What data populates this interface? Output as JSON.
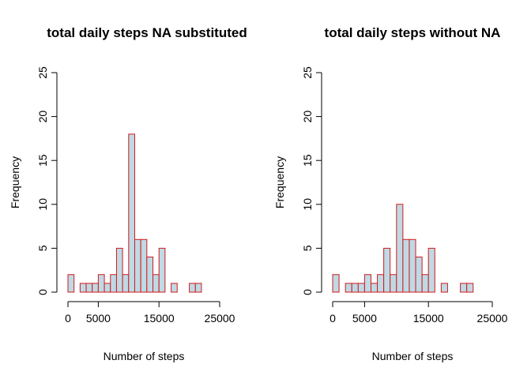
{
  "colors": {
    "bar_fill": "#bfd9e5",
    "bar_stroke": "#d21a1a",
    "axis": "#000000"
  },
  "chart_data": [
    {
      "type": "bar",
      "title": "total daily steps NA substituted",
      "xlabel": "Number of steps",
      "ylabel": "Frequency",
      "xlim": [
        0,
        25000
      ],
      "ylim": [
        0,
        25
      ],
      "x_ticks": [
        0,
        5000,
        15000,
        25000
      ],
      "x_tick_labels": [
        "0",
        "5000",
        "15000",
        "25000"
      ],
      "y_ticks": [
        0,
        5,
        10,
        15,
        20,
        25
      ],
      "y_tick_labels": [
        "0",
        "5",
        "10",
        "15",
        "20",
        "25"
      ],
      "bin_width": 1000,
      "bin_starts": [
        0,
        1000,
        2000,
        3000,
        4000,
        5000,
        6000,
        7000,
        8000,
        9000,
        10000,
        11000,
        12000,
        13000,
        14000,
        15000,
        16000,
        17000,
        18000,
        19000,
        20000,
        21000
      ],
      "values": [
        2,
        0,
        1,
        1,
        1,
        2,
        1,
        2,
        5,
        2,
        18,
        6,
        6,
        4,
        2,
        5,
        0,
        1,
        0,
        0,
        1,
        1
      ],
      "grid": false,
      "legend": "none"
    },
    {
      "type": "bar",
      "title": "total daily steps without NA",
      "xlabel": "Number of steps",
      "ylabel": "Frequency",
      "xlim": [
        0,
        25000
      ],
      "ylim": [
        0,
        25
      ],
      "x_ticks": [
        0,
        5000,
        15000,
        25000
      ],
      "x_tick_labels": [
        "0",
        "5000",
        "15000",
        "25000"
      ],
      "y_ticks": [
        0,
        5,
        10,
        15,
        20,
        25
      ],
      "y_tick_labels": [
        "0",
        "5",
        "10",
        "15",
        "20",
        "25"
      ],
      "bin_width": 1000,
      "bin_starts": [
        0,
        1000,
        2000,
        3000,
        4000,
        5000,
        6000,
        7000,
        8000,
        9000,
        10000,
        11000,
        12000,
        13000,
        14000,
        15000,
        16000,
        17000,
        18000,
        19000,
        20000,
        21000
      ],
      "values": [
        2,
        0,
        1,
        1,
        1,
        2,
        1,
        2,
        5,
        2,
        10,
        6,
        6,
        4,
        2,
        5,
        0,
        1,
        0,
        0,
        1,
        1
      ],
      "grid": false,
      "legend": "none"
    }
  ]
}
